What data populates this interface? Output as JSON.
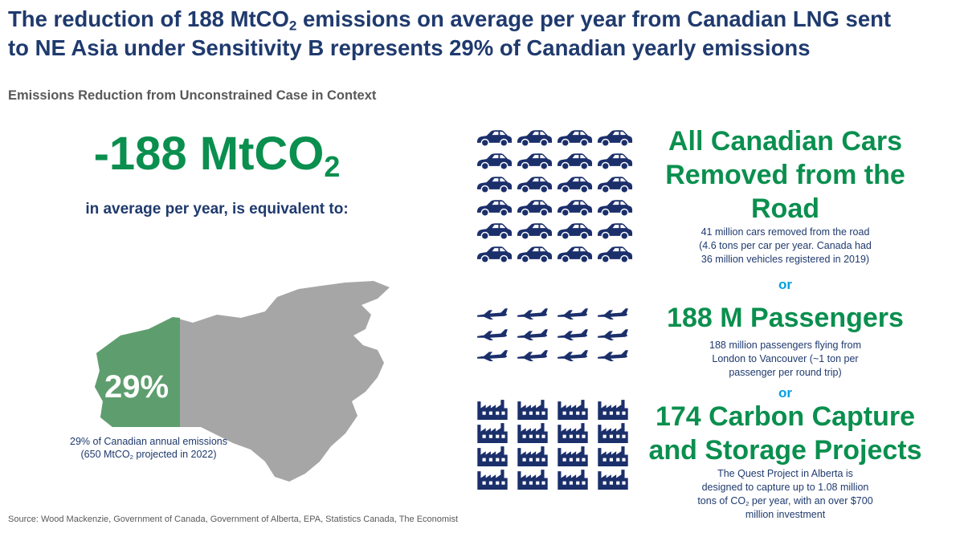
{
  "header": {
    "title": {
      "line_1": [
        "The reduction of 188 MtCO",
        "2",
        " emissions on average per year from Canadian LNG sent"
      ],
      "line_2": "to NE Asia under Sensitivity B represents 29% of Canadian yearly emissions"
    },
    "subtitle": "Emissions Reduction from Unconstrained Case in Context"
  },
  "headline": {
    "value": [
      "-188 MtCO",
      "2"
    ],
    "text": "in average per year, is equivalent to:"
  },
  "map": {
    "share": "29%",
    "caption": {
      "line_1": "29% of Canadian annual emissions",
      "line_2": [
        "(650 MtCO",
        "2",
        " projected in 2022)"
      ]
    }
  },
  "equivalents": [
    {
      "heading": [
        "All Canadian Cars",
        "Removed from the",
        "Road"
      ],
      "details": [
        "41 million cars removed from the road",
        "(4.6 tons per car per year. Canada had",
        "36 million vehicles registered in 2019)"
      ]
    },
    {
      "heading": [
        "188 M Passengers"
      ],
      "details": [
        "188 million passengers flying from",
        "London to Vancouver (~1 ton per",
        "passenger per round trip)"
      ]
    },
    {
      "heading": [
        "174 Carbon Capture",
        "and Storage Projects"
      ],
      "details": [
        "The Quest Project in Alberta is",
        "designed to capture up to 1.08 million",
        [
          "tons of CO",
          "2",
          " per year, with an over $700"
        ],
        "million investment"
      ]
    }
  ],
  "separators": [
    "or",
    "or"
  ],
  "source": "Source: Wood Mackenzie, Government of Canada, Government of Alberta, EPA, Statistics Canada, The Economist"
}
